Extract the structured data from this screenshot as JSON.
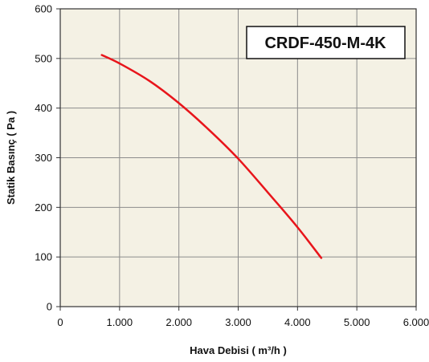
{
  "chart_data": {
    "type": "line",
    "title": "CRDF-450-M-4K",
    "xlabel": "Hava Debisi ( m³/h )",
    "ylabel": "Statik Basınç ( Pa )",
    "xlim": [
      0,
      6000
    ],
    "ylim": [
      0,
      600
    ],
    "x_ticks": [
      0,
      1000,
      2000,
      3000,
      4000,
      5000,
      6000
    ],
    "x_tick_labels": [
      "0",
      "1.000",
      "2.000",
      "3.000",
      "4.000",
      "5.000",
      "6.000"
    ],
    "y_ticks": [
      0,
      100,
      200,
      300,
      400,
      500,
      600
    ],
    "y_tick_labels": [
      "0",
      "100",
      "200",
      "300",
      "400",
      "500",
      "600"
    ],
    "grid": true,
    "legend": "none",
    "series": [
      {
        "color": "#e8151b",
        "x": [
          700,
          1000,
          1500,
          2000,
          2500,
          3000,
          3500,
          4000,
          4400
        ],
        "y": [
          507,
          490,
          455,
          410,
          357,
          298,
          230,
          160,
          98
        ]
      }
    ]
  },
  "colors": {
    "plot_background": "#f4f1e4",
    "grid": "#8c8c8c",
    "frame": "#333333"
  }
}
